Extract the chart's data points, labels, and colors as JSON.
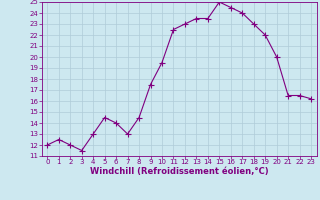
{
  "x": [
    0,
    1,
    2,
    3,
    4,
    5,
    6,
    7,
    8,
    9,
    10,
    11,
    12,
    13,
    14,
    15,
    16,
    17,
    18,
    19,
    20,
    21,
    22,
    23
  ],
  "y": [
    12.0,
    12.5,
    12.0,
    11.5,
    13.0,
    14.5,
    14.0,
    13.0,
    14.5,
    17.5,
    19.5,
    22.5,
    23.0,
    23.5,
    23.5,
    25.0,
    24.5,
    24.0,
    23.0,
    22.0,
    20.0,
    16.5,
    16.5,
    16.2
  ],
  "ylim": [
    11,
    25
  ],
  "xlim": [
    -0.5,
    23.5
  ],
  "yticks": [
    11,
    12,
    13,
    14,
    15,
    16,
    17,
    18,
    19,
    20,
    21,
    22,
    23,
    24,
    25
  ],
  "xticks": [
    0,
    1,
    2,
    3,
    4,
    5,
    6,
    7,
    8,
    9,
    10,
    11,
    12,
    13,
    14,
    15,
    16,
    17,
    18,
    19,
    20,
    21,
    22,
    23
  ],
  "xlabel": "Windchill (Refroidissement éolien,°C)",
  "line_color": "#800080",
  "marker": "+",
  "marker_size": 4,
  "bg_color": "#cde8f0",
  "grid_color": "#b0ccd8",
  "label_fontsize": 6,
  "tick_fontsize": 5
}
